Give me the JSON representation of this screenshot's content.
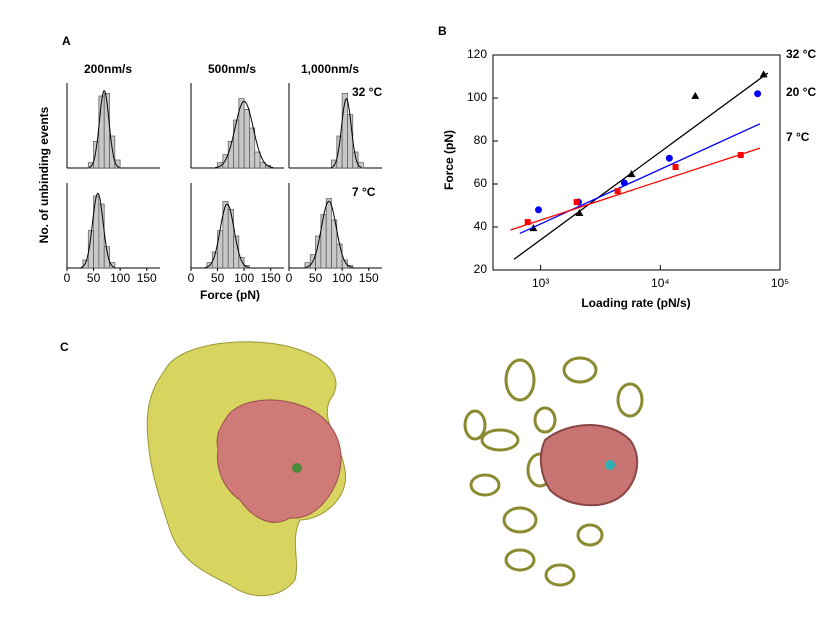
{
  "chart_data": [
    {
      "type": "histogram",
      "panel": "A",
      "y_label": "No. of unbinding events",
      "x_label": "Force (pN)",
      "columns": [
        "200nm/s",
        "500nm/s",
        "1,000nm/s"
      ],
      "rows": [
        "32 °C",
        "7 °C"
      ],
      "xlim": [
        0,
        175
      ],
      "xticks": [
        0,
        50,
        100,
        150
      ],
      "ylim": [
        0,
        30
      ],
      "plots": [
        {
          "bins": [
            40,
            50,
            60,
            70,
            80,
            90,
            100
          ],
          "counts": [
            2,
            10,
            27,
            28,
            12,
            3
          ],
          "fit": {
            "mean": 70,
            "sd": 9,
            "peak": 29
          }
        },
        {
          "bins": [
            50,
            60,
            70,
            80,
            90,
            100,
            110,
            120,
            130,
            140,
            150
          ],
          "counts": [
            2,
            5,
            10,
            18,
            26,
            22,
            15,
            6,
            2,
            1
          ],
          "fit": {
            "mean": 100,
            "sd": 17,
            "peak": 25
          }
        },
        {
          "bins": [
            80,
            90,
            100,
            110,
            120,
            130,
            140
          ],
          "counts": [
            3,
            12,
            28,
            20,
            6,
            2
          ],
          "fit": {
            "mean": 108,
            "sd": 9,
            "peak": 26
          }
        },
        {
          "bins": [
            30,
            40,
            50,
            60,
            70,
            80,
            90
          ],
          "counts": [
            3,
            14,
            27,
            24,
            8,
            2
          ],
          "fit": {
            "mean": 58,
            "sd": 10,
            "peak": 28
          }
        },
        {
          "bins": [
            30,
            40,
            50,
            60,
            70,
            80,
            90,
            100,
            110
          ],
          "counts": [
            2,
            6,
            14,
            25,
            22,
            12,
            4,
            1
          ],
          "fit": {
            "mean": 68,
            "sd": 13,
            "peak": 24
          }
        },
        {
          "bins": [
            30,
            40,
            50,
            60,
            70,
            80,
            90,
            100,
            110,
            120
          ],
          "counts": [
            2,
            5,
            12,
            20,
            26,
            18,
            9,
            3,
            1
          ],
          "fit": {
            "mean": 75,
            "sd": 14,
            "peak": 25
          }
        }
      ]
    },
    {
      "type": "scatter",
      "panel": "B",
      "x_label": "Loading rate (pN/s)",
      "y_label": "Force (pN)",
      "xscale": "log",
      "xlim": [
        400,
        100000
      ],
      "ylim": [
        20,
        120
      ],
      "xticks": [
        {
          "value": 1000,
          "label": "10³"
        },
        {
          "value": 10000,
          "label": "10⁴"
        },
        {
          "value": 100000,
          "label": "10⁵"
        }
      ],
      "yticks": [
        20,
        40,
        60,
        80,
        100,
        120
      ],
      "series": [
        {
          "name": "32 °C",
          "color": "#000000",
          "marker": "triangle",
          "x": [
            870,
            2110,
            5740,
            19600,
            73000
          ],
          "values": [
            39.5,
            46.5,
            64.6,
            101,
            111
          ],
          "fit": {
            "x": [
              600,
              79000
            ],
            "values": [
              25,
              111.6
            ]
          }
        },
        {
          "name": "20 °C",
          "color": "#0000ff",
          "marker": "circle",
          "x": [
            960,
            2070,
            5000,
            11900,
            65000
          ],
          "values": [
            48,
            51.6,
            60.5,
            72,
            102
          ],
          "fit": {
            "x": [
              670,
              68000
            ],
            "values": [
              37,
              88
            ]
          }
        },
        {
          "name": "7 °C",
          "color": "#ff0000",
          "marker": "square",
          "x": [
            780,
            2000,
            4400,
            13400,
            47000
          ],
          "values": [
            42.3,
            51.6,
            56.7,
            67.9,
            73.5
          ],
          "fit": {
            "x": [
              560,
              68000
            ],
            "values": [
              38.6,
              76.7
            ]
          }
        }
      ]
    }
  ],
  "panel_c": {
    "label": "C"
  }
}
